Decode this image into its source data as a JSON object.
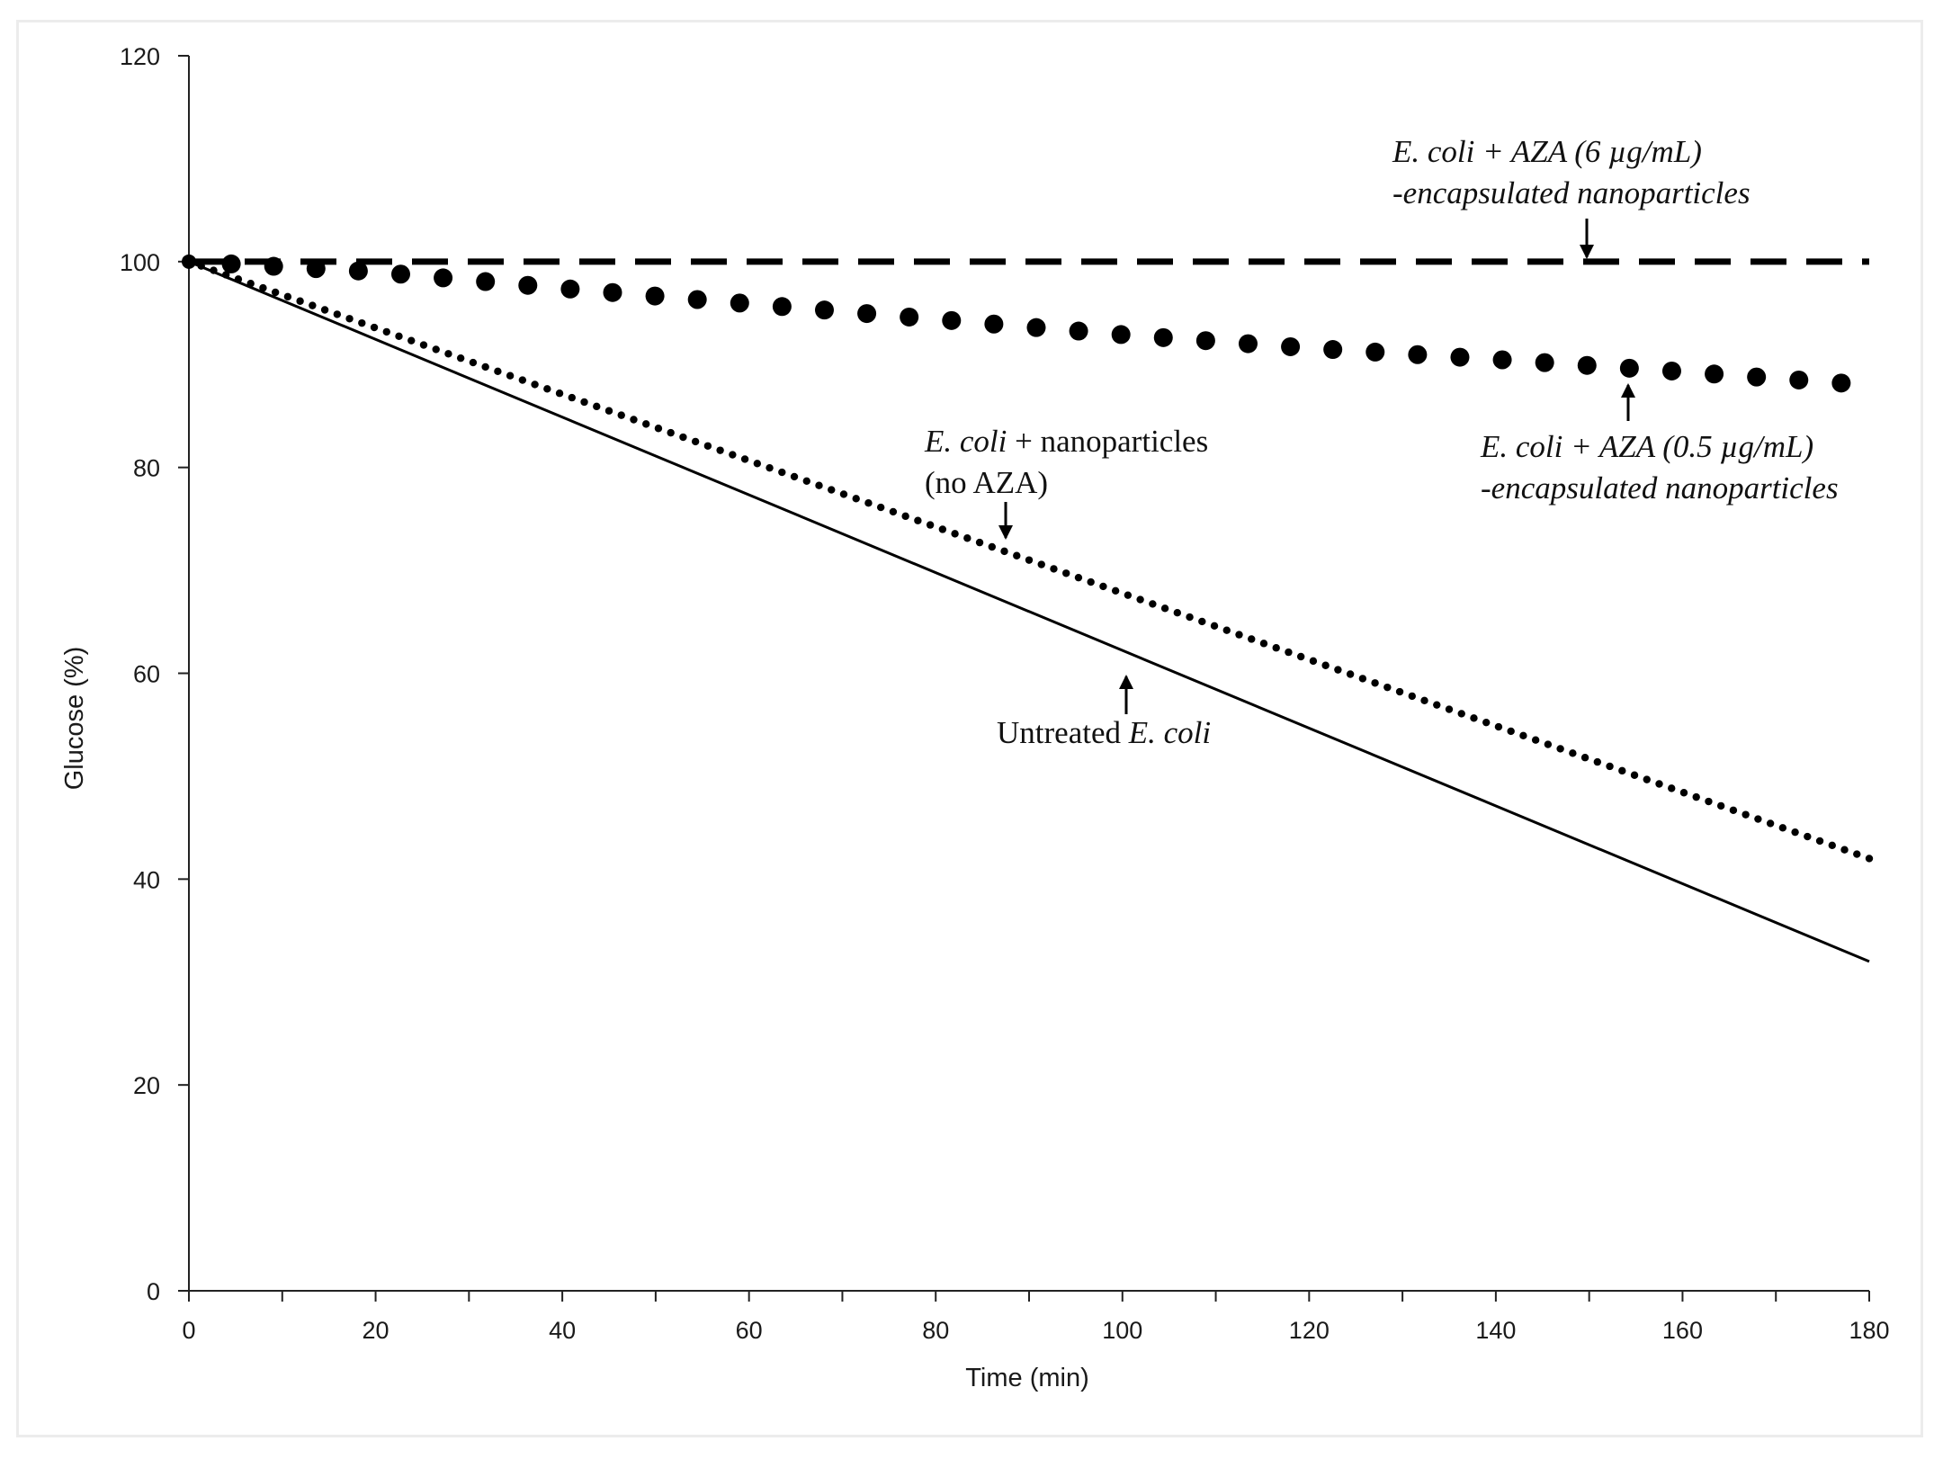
{
  "chart_data": {
    "type": "line",
    "xlabel": "Time (min)",
    "ylabel": "Glucose (%)",
    "xlim": [
      0,
      180
    ],
    "ylim": [
      0,
      120
    ],
    "x_ticks": [
      0,
      20,
      40,
      60,
      80,
      100,
      120,
      140,
      160,
      180
    ],
    "y_ticks": [
      0,
      20,
      40,
      60,
      80,
      100,
      120
    ],
    "grid": false,
    "series": [
      {
        "name": "Untreated E. coli",
        "style": "solid",
        "x": [
          0,
          180
        ],
        "y": [
          100,
          32
        ]
      },
      {
        "name": "E. coli + nanoparticles (no AZA)",
        "style": "small-dots",
        "x": [
          0,
          180
        ],
        "y": [
          100,
          42
        ]
      },
      {
        "name": "E. coli + AZA (0.5 µg/mL) -encapsulated nanoparticles",
        "style": "large-dots",
        "x": [
          0,
          20,
          40,
          60,
          80,
          100,
          120,
          140,
          160,
          177
        ],
        "y": [
          100,
          99,
          97.4,
          95.9,
          94.4,
          92.9,
          91.6,
          90.5,
          89.3,
          88.2
        ]
      },
      {
        "name": "E. coli + AZA (6 µg/mL) -encapsulated nanoparticles",
        "style": "dashed",
        "x": [
          0,
          180
        ],
        "y": [
          100,
          100
        ]
      }
    ],
    "annotations": [
      {
        "lines": [
          [
            {
              "text": "E. coli + AZA (6 µg/mL)",
              "italic": true
            }
          ],
          [
            {
              "text": "-encapsulated nanoparticles",
              "italic": true
            }
          ]
        ],
        "arrow": "down"
      },
      {
        "lines": [
          [
            {
              "text": "E. coli + AZA (0.5 µg/mL)",
              "italic": true
            }
          ],
          [
            {
              "text": "-encapsulated nanoparticles",
              "italic": true
            }
          ]
        ],
        "arrow": "up"
      },
      {
        "lines": [
          [
            {
              "text": "E. coli",
              "italic": true
            },
            {
              "text": " + nanoparticles",
              "italic": false
            }
          ],
          [
            {
              "text": "(no AZA)",
              "italic": false
            }
          ]
        ],
        "arrow": "down"
      },
      {
        "lines": [
          [
            {
              "text": "Untreated ",
              "italic": false
            },
            {
              "text": "E. coli",
              "italic": true
            }
          ]
        ],
        "arrow": "up"
      }
    ]
  }
}
